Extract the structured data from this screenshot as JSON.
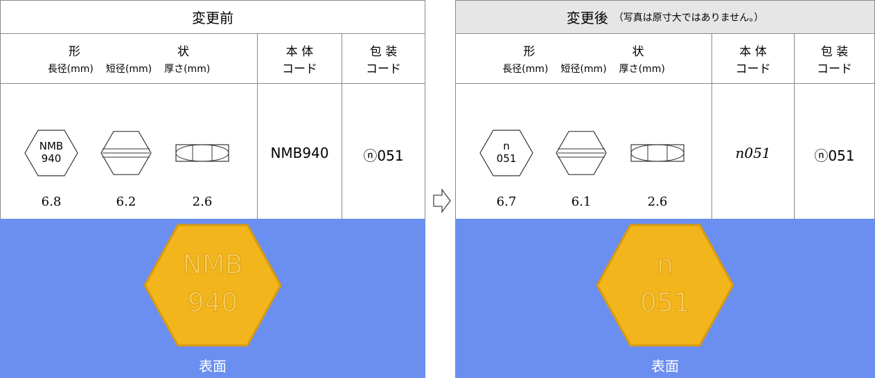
{
  "panels": [
    {
      "title": "変更前",
      "shape_header": [
        "形",
        "状"
      ],
      "dimension_headers": [
        "長径(mm)",
        "短径(mm)",
        "厚さ(mm)"
      ],
      "body_code_header": [
        "本 体",
        "コード"
      ],
      "package_code_header": [
        "包 装",
        "コード"
      ],
      "imprint": [
        "NMB",
        "940"
      ],
      "dimensions": [
        6.8,
        6.2,
        2.6
      ],
      "body_code": "NMB940",
      "package_code": "ⓝ051",
      "photo_imprint": [
        "NMB",
        "940"
      ],
      "photo_caption": "表面"
    },
    {
      "title": "変更後",
      "subtitle": "（写真は原寸大ではありません。）",
      "shape_header": [
        "形",
        "状"
      ],
      "dimension_headers": [
        "長径(mm)",
        "短径(mm)",
        "厚さ(mm)"
      ],
      "body_code_header": [
        "本 体",
        "コード"
      ],
      "package_code_header": [
        "包 装",
        "コード"
      ],
      "imprint": [
        "n",
        "051"
      ],
      "dimensions": [
        6.7,
        6.1,
        2.6
      ],
      "body_code": "n051",
      "package_code": "ⓝ051",
      "photo_imprint": [
        "n",
        "051"
      ],
      "photo_caption": "表面"
    }
  ]
}
